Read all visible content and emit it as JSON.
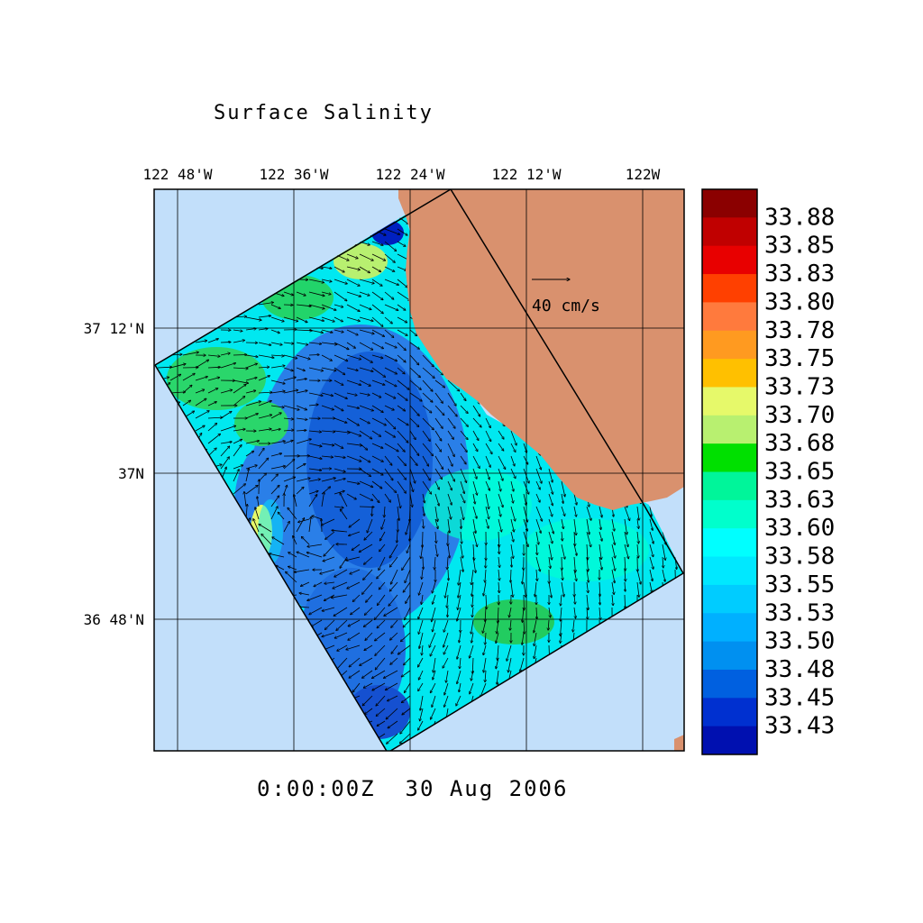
{
  "title": "Surface Salinity",
  "timestamp": "0:00:00Z  30 Aug 2006",
  "map": {
    "lon_labels": [
      "122 48'W",
      "122 36'W",
      "122 24'W",
      "122 12'W",
      "122W"
    ],
    "lat_labels": [
      "37 12'N",
      "37N",
      "36 48'N"
    ],
    "vector_scale_label": "40 cm/s",
    "colors": {
      "ocean_background": "#c2dffa",
      "land": "#d9916e",
      "grid": "#000000"
    }
  },
  "colorbar": {
    "labels": [
      "33.88",
      "33.85",
      "33.83",
      "33.80",
      "33.78",
      "33.75",
      "33.73",
      "33.70",
      "33.68",
      "33.65",
      "33.63",
      "33.60",
      "33.58",
      "33.55",
      "33.53",
      "33.50",
      "33.48",
      "33.45",
      "33.43"
    ],
    "colors": [
      "#8b0000",
      "#c00000",
      "#e80000",
      "#ff4000",
      "#ff7a3d",
      "#ff9a20",
      "#ffc000",
      "#e6f96a",
      "#b8f070",
      "#00e000",
      "#00f59a",
      "#00ffcc",
      "#00ffff",
      "#00e8ff",
      "#00ccff",
      "#00b0ff",
      "#0090f0",
      "#0060e0",
      "#0030d0",
      "#0010b0"
    ]
  }
}
